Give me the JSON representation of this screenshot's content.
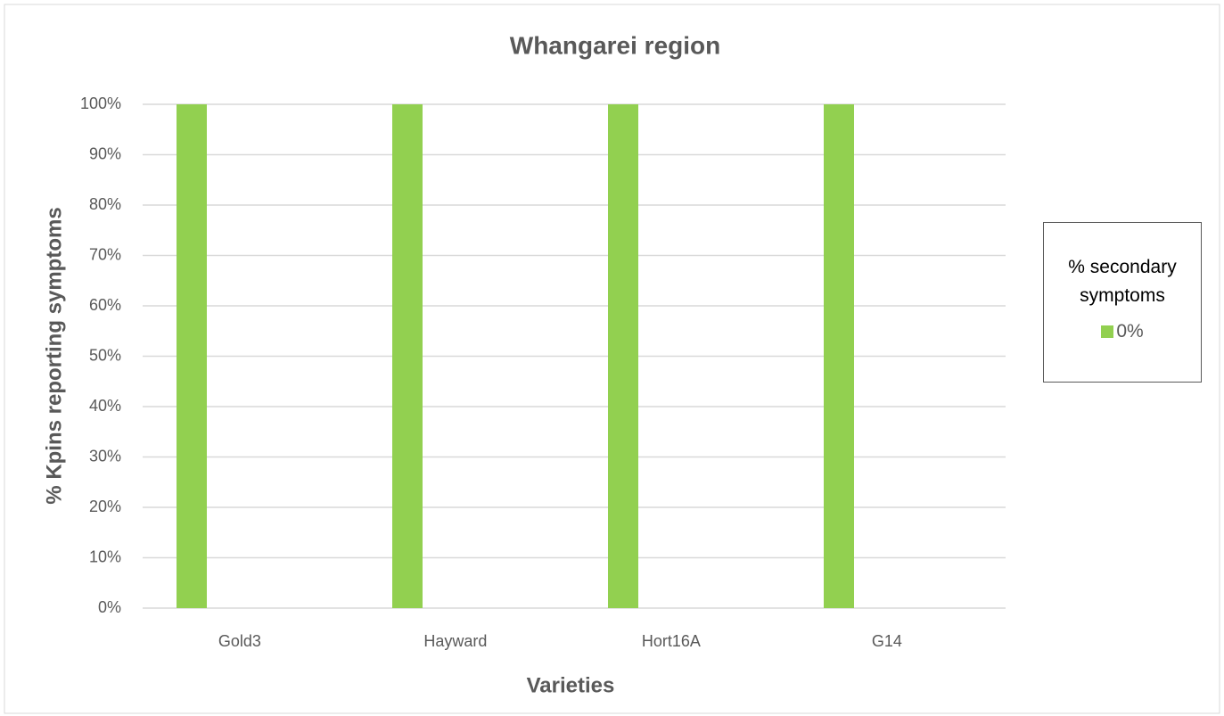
{
  "chart_data": {
    "type": "bar",
    "title": "Whangarei region",
    "x_label": "Varieties",
    "y_label": "% Kpins reporting symptoms",
    "categories": [
      "Gold3",
      "Hayward",
      "Hort16A",
      "G14"
    ],
    "legend_title": "% secondary symptoms",
    "series": [
      {
        "name": "0%",
        "color": "#92d050",
        "values": [
          100,
          100,
          100,
          100
        ]
      }
    ],
    "ylim": [
      0,
      100
    ],
    "yticks": [
      {
        "value": 0,
        "label": "0%"
      },
      {
        "value": 10,
        "label": "10%"
      },
      {
        "value": 20,
        "label": "20%"
      },
      {
        "value": 30,
        "label": "30%"
      },
      {
        "value": 40,
        "label": "40%"
      },
      {
        "value": 50,
        "label": "50%"
      },
      {
        "value": 60,
        "label": "60%"
      },
      {
        "value": 70,
        "label": "70%"
      },
      {
        "value": 80,
        "label": "80%"
      },
      {
        "value": 90,
        "label": "90%"
      },
      {
        "value": 100,
        "label": "100%"
      }
    ],
    "grid": true,
    "legend": "right"
  }
}
